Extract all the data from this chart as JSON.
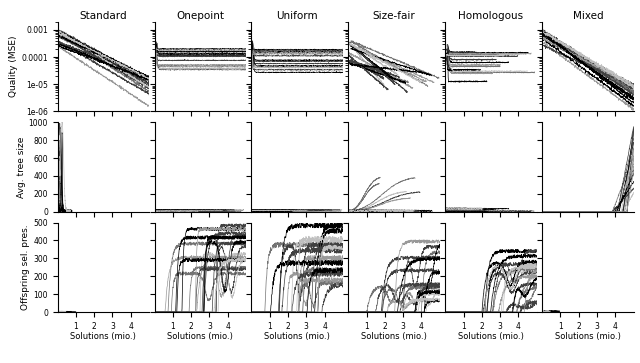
{
  "col_titles": [
    "Standard",
    "Onepoint",
    "Uniform",
    "Size-fair",
    "Homologous",
    "Mixed"
  ],
  "row_ylabels": [
    "Quality (MSE)",
    "Avg. tree size",
    "Offspring sel. pres."
  ],
  "xlabel": "Solutions (mio.)",
  "n_cols": 6,
  "n_rows": 3,
  "x_max": 5.0,
  "x_ticks": [
    1,
    2,
    3,
    4
  ],
  "row0_ylim": [
    1e-06,
    0.002
  ],
  "row0_yticks": [
    0.001,
    0.0001,
    1e-05,
    1e-06
  ],
  "row0_ytick_labels": [
    "0.001",
    "0.0001",
    "1e-05",
    "1e-06"
  ],
  "row1_ylim": [
    0,
    1000
  ],
  "row2_ylim": [
    0,
    500
  ],
  "row1_yticks": [
    0,
    200,
    400,
    600,
    800,
    1000
  ],
  "row2_yticks": [
    0,
    100,
    200,
    300,
    400,
    500
  ],
  "n_lines": 20,
  "seed": 42,
  "lw": 0.5,
  "figsize": [
    6.4,
    3.63
  ],
  "dpi": 100
}
